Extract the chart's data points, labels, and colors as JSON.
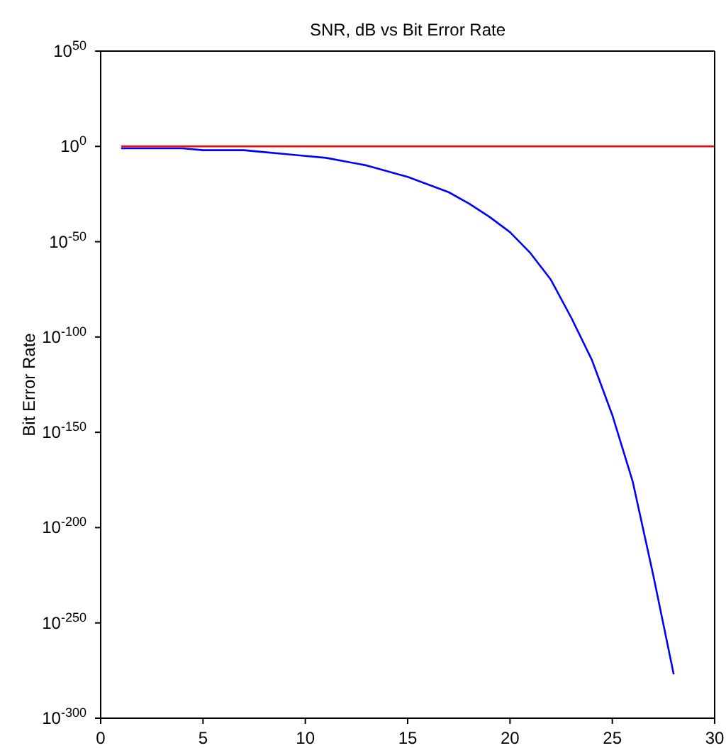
{
  "chart_data": {
    "type": "line",
    "title": "SNR, dB vs Bit Error Rate",
    "ylabel": "Bit Error Rate",
    "log": "y",
    "marker": "none",
    "line_style": "solid",
    "xlim": [
      0,
      30
    ],
    "xticks": [
      0,
      5,
      10,
      15,
      20,
      25,
      30
    ],
    "ylim": [
      1e-300,
      1e+50
    ],
    "yticks": [
      {
        "value": 1e+50,
        "label": "10$^{50}$"
      },
      {
        "value": 1,
        "label": "10$^{0}$"
      },
      {
        "value": 1e-50,
        "label": "10$^{-50}$"
      },
      {
        "value": 1e-100,
        "label": "10$^{-100}$"
      },
      {
        "value": 1e-150,
        "label": "10$^{-150}$"
      },
      {
        "value": 1e-200,
        "label": "10$^{-200}$"
      },
      {
        "value": 1e-250,
        "label": "10$^{-250}$"
      },
      {
        "value": 1e-300,
        "label": "10$^{-300}$"
      }
    ],
    "series": [
      {
        "color": "#0000ff",
        "x": [
          1,
          2,
          3,
          4,
          5,
          6,
          7,
          8,
          9,
          10,
          11,
          12,
          13,
          14,
          15,
          16,
          17,
          18,
          19,
          20,
          21,
          22,
          23,
          24,
          25,
          26,
          27,
          28
        ],
        "values": [
          0.1,
          0.1,
          0.1,
          0.1,
          0.01,
          0.01,
          0.01,
          0.001,
          0.0001,
          1e-05,
          1e-06,
          1e-08,
          1e-10,
          1e-13,
          1e-16,
          1e-20,
          1e-24,
          1e-30,
          1e-37,
          1e-45,
          1e-56,
          1e-70,
          1e-90,
          1e-112,
          1e-141,
          1e-176,
          1e-225,
          1e-277
        ]
      },
      {
        "color": "#ff0000",
        "x": [
          1,
          30
        ],
        "values": [
          1,
          1
        ]
      }
    ]
  }
}
